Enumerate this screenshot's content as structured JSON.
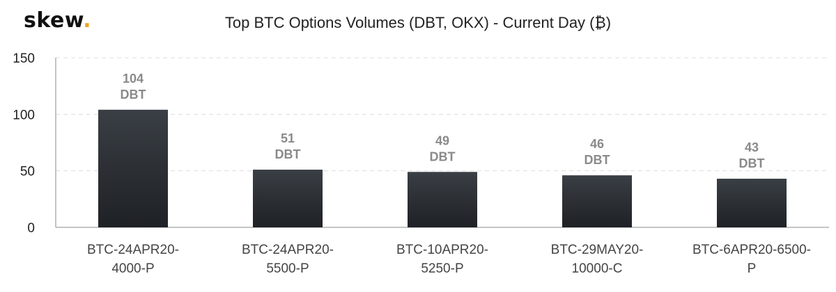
{
  "brand": {
    "name": "skew",
    "dot": ".",
    "dot_color": "#f0a41c"
  },
  "chart_data": {
    "type": "bar",
    "title": "Top BTC Options Volumes (DBT, OKX) - Current Day (₿)",
    "categories": [
      [
        "BTC-24APR20-",
        "4000-P"
      ],
      [
        "BTC-24APR20-",
        "5500-P"
      ],
      [
        "BTC-10APR20-",
        "5250-P"
      ],
      [
        "BTC-29MAY20-",
        "10000-C"
      ],
      [
        "BTC-6APR20-6500-",
        "P"
      ]
    ],
    "series": [
      {
        "values": [
          104,
          51,
          49,
          46,
          43
        ],
        "data_label": "DBT"
      }
    ],
    "ylim": [
      0,
      150
    ],
    "yticks": [
      0,
      50,
      100,
      150
    ],
    "grid": true,
    "bar_color_top": "#3a3f45",
    "bar_color_bottom": "#1e2125"
  }
}
